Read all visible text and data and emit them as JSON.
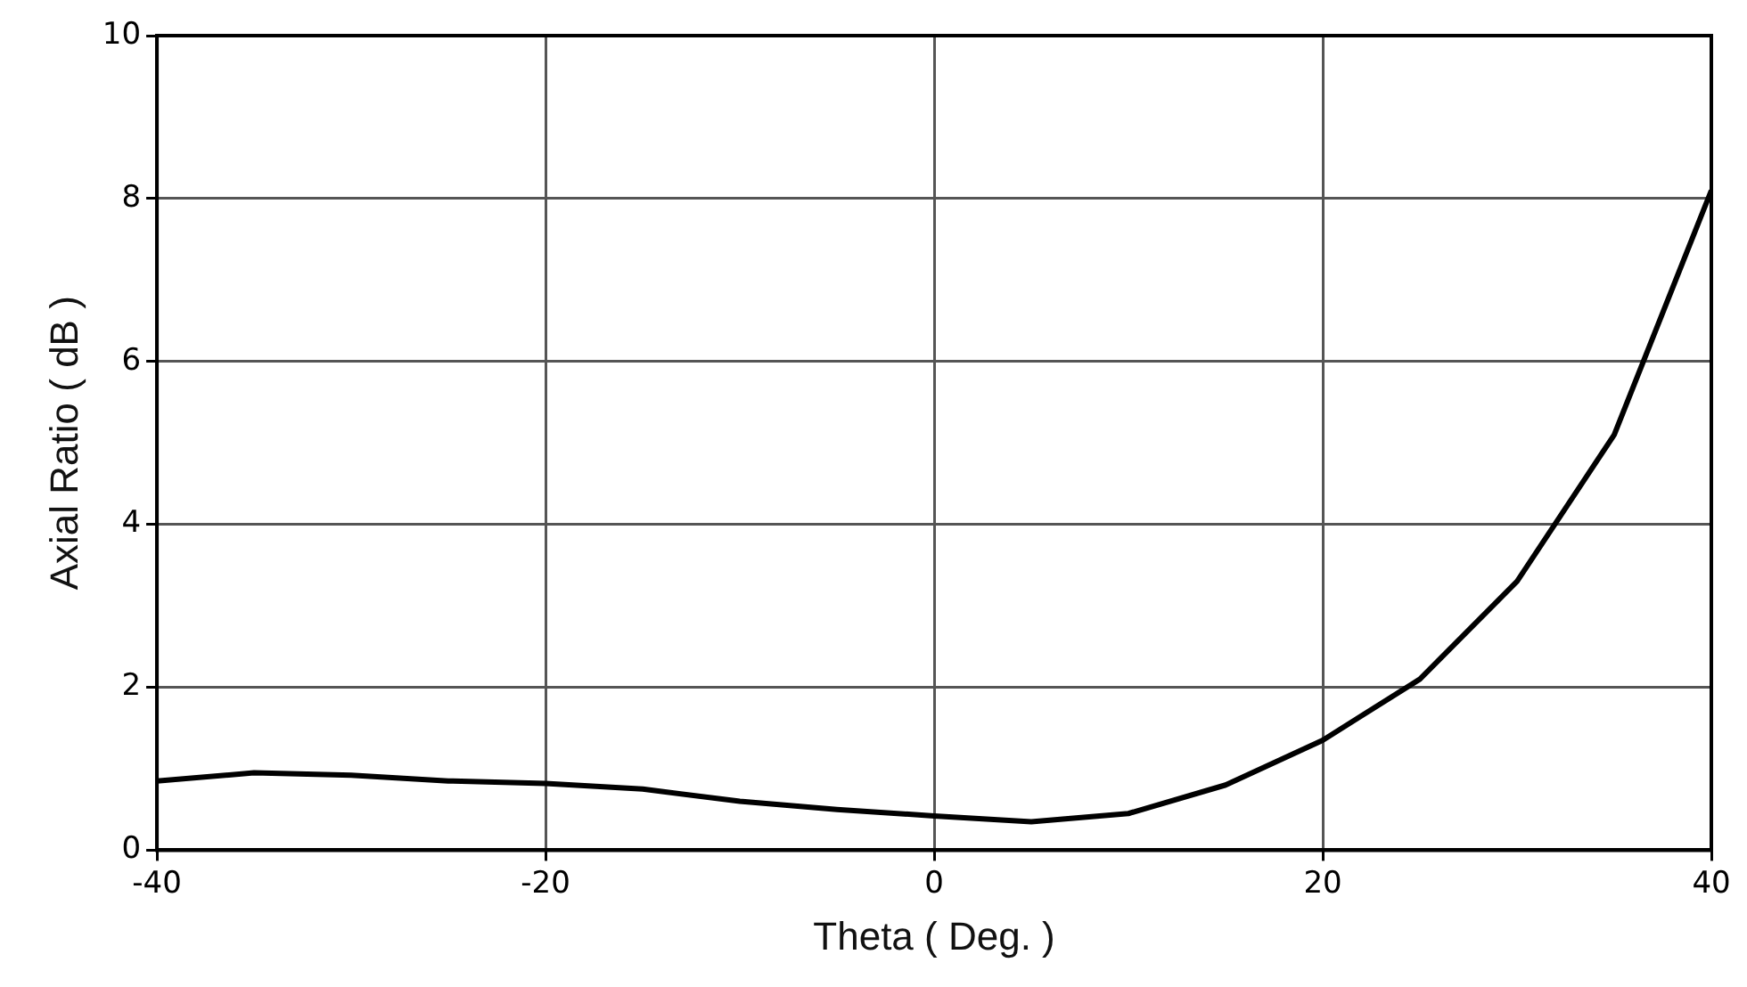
{
  "chart_data": {
    "type": "line",
    "xlabel": "Theta ( Deg. )",
    "ylabel": "Axial Ratio ( dB )",
    "x": [
      -40,
      -35,
      -30,
      -25,
      -20,
      -15,
      -10,
      -5,
      0,
      5,
      10,
      15,
      20,
      25,
      30,
      35,
      40
    ],
    "series": [
      {
        "color": "#000000",
        "values": [
          0.85,
          0.95,
          0.92,
          0.85,
          0.82,
          0.75,
          0.6,
          0.5,
          0.42,
          0.35,
          0.45,
          0.8,
          1.35,
          2.1,
          3.3,
          5.1,
          8.1
        ]
      }
    ],
    "xlim": [
      -40,
      40
    ],
    "xticks": [
      -40,
      -20,
      0,
      20,
      40
    ],
    "ylim": [
      0,
      10
    ],
    "yticks": [
      0,
      2,
      4,
      6,
      8,
      10
    ],
    "grid": true,
    "legend": false,
    "marker": "none",
    "line_style": "solid"
  }
}
